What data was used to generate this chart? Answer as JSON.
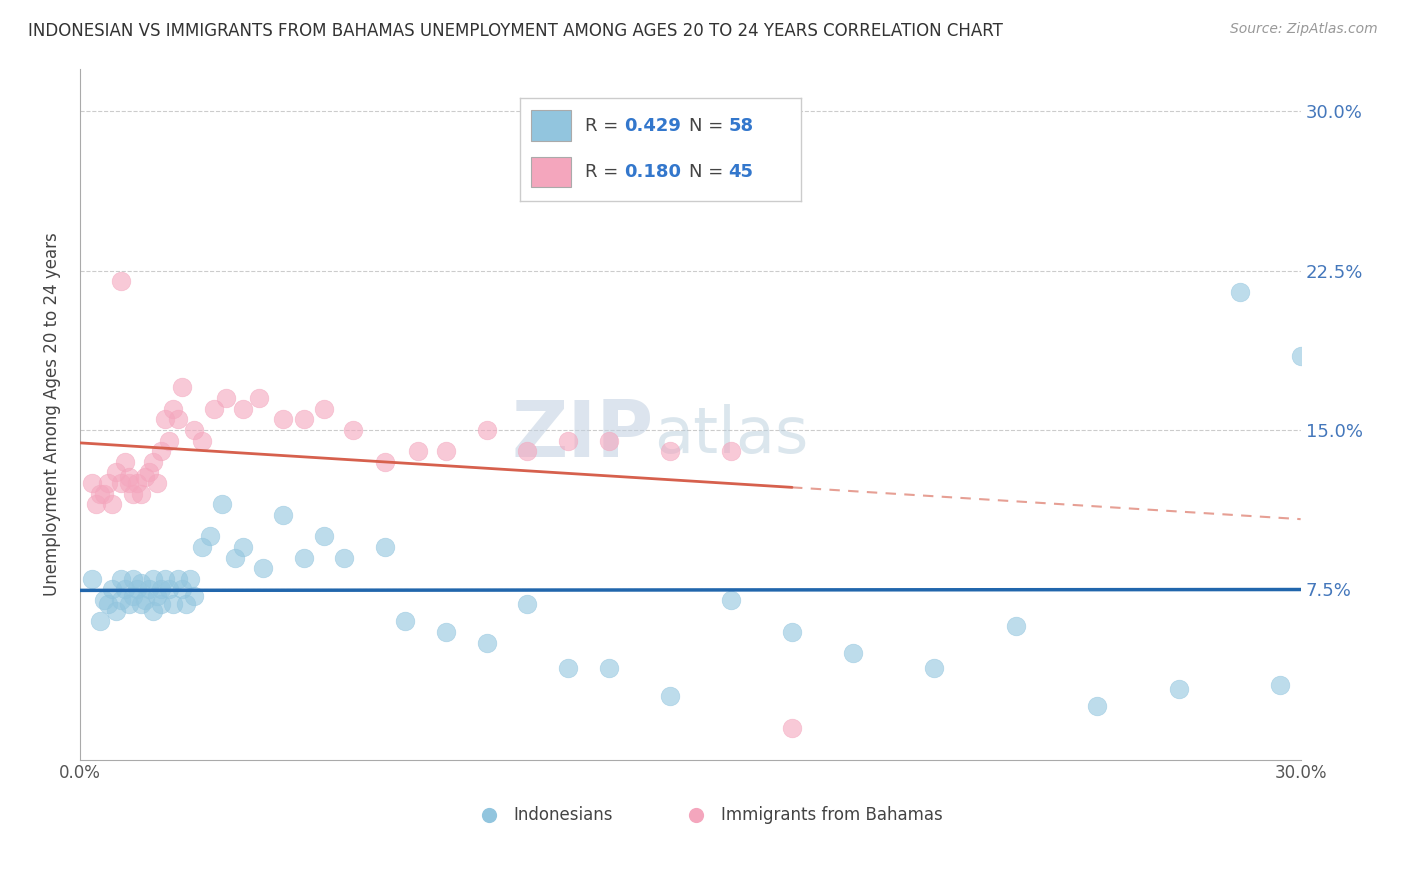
{
  "title": "INDONESIAN VS IMMIGRANTS FROM BAHAMAS UNEMPLOYMENT AMONG AGES 20 TO 24 YEARS CORRELATION CHART",
  "source": "Source: ZipAtlas.com",
  "ylabel": "Unemployment Among Ages 20 to 24 years",
  "xlim": [
    0.0,
    0.3
  ],
  "ylim": [
    -0.005,
    0.32
  ],
  "yticks": [
    0.075,
    0.15,
    0.225,
    0.3
  ],
  "ytick_labels": [
    "7.5%",
    "15.0%",
    "22.5%",
    "30.0%"
  ],
  "color_blue": "#92c5de",
  "color_pink": "#f4a6bd",
  "color_blue_line": "#2166ac",
  "color_pink_line": "#d6604d",
  "indonesian_x": [
    0.003,
    0.005,
    0.006,
    0.007,
    0.008,
    0.009,
    0.01,
    0.01,
    0.011,
    0.012,
    0.013,
    0.013,
    0.014,
    0.015,
    0.015,
    0.016,
    0.017,
    0.018,
    0.018,
    0.019,
    0.02,
    0.02,
    0.021,
    0.022,
    0.023,
    0.024,
    0.025,
    0.026,
    0.027,
    0.028,
    0.03,
    0.032,
    0.035,
    0.038,
    0.04,
    0.045,
    0.05,
    0.055,
    0.06,
    0.065,
    0.075,
    0.08,
    0.09,
    0.1,
    0.11,
    0.12,
    0.13,
    0.145,
    0.16,
    0.175,
    0.19,
    0.21,
    0.23,
    0.25,
    0.27,
    0.285,
    0.295,
    0.3
  ],
  "indonesian_y": [
    0.08,
    0.06,
    0.07,
    0.068,
    0.075,
    0.065,
    0.08,
    0.07,
    0.075,
    0.068,
    0.072,
    0.08,
    0.075,
    0.068,
    0.078,
    0.07,
    0.075,
    0.065,
    0.08,
    0.072,
    0.068,
    0.075,
    0.08,
    0.075,
    0.068,
    0.08,
    0.075,
    0.068,
    0.08,
    0.072,
    0.095,
    0.1,
    0.115,
    0.09,
    0.095,
    0.085,
    0.11,
    0.09,
    0.1,
    0.09,
    0.095,
    0.06,
    0.055,
    0.05,
    0.068,
    0.038,
    0.038,
    0.025,
    0.07,
    0.055,
    0.045,
    0.038,
    0.058,
    0.02,
    0.028,
    0.215,
    0.03,
    0.185
  ],
  "bahamas_x": [
    0.003,
    0.004,
    0.005,
    0.006,
    0.007,
    0.008,
    0.009,
    0.01,
    0.011,
    0.012,
    0.012,
    0.013,
    0.014,
    0.015,
    0.016,
    0.017,
    0.018,
    0.019,
    0.02,
    0.021,
    0.022,
    0.023,
    0.024,
    0.025,
    0.028,
    0.03,
    0.033,
    0.036,
    0.04,
    0.044,
    0.05,
    0.055,
    0.06,
    0.067,
    0.075,
    0.083,
    0.09,
    0.1,
    0.11,
    0.12,
    0.13,
    0.145,
    0.16,
    0.01,
    0.175
  ],
  "bahamas_y": [
    0.125,
    0.115,
    0.12,
    0.12,
    0.125,
    0.115,
    0.13,
    0.125,
    0.135,
    0.125,
    0.128,
    0.12,
    0.125,
    0.12,
    0.128,
    0.13,
    0.135,
    0.125,
    0.14,
    0.155,
    0.145,
    0.16,
    0.155,
    0.17,
    0.15,
    0.145,
    0.16,
    0.165,
    0.16,
    0.165,
    0.155,
    0.155,
    0.16,
    0.15,
    0.135,
    0.14,
    0.14,
    0.15,
    0.14,
    0.145,
    0.145,
    0.14,
    0.14,
    0.22,
    0.01
  ],
  "watermark_zip": "ZIP",
  "watermark_atlas": "atlas",
  "watermark_color": "#c8d8e8"
}
